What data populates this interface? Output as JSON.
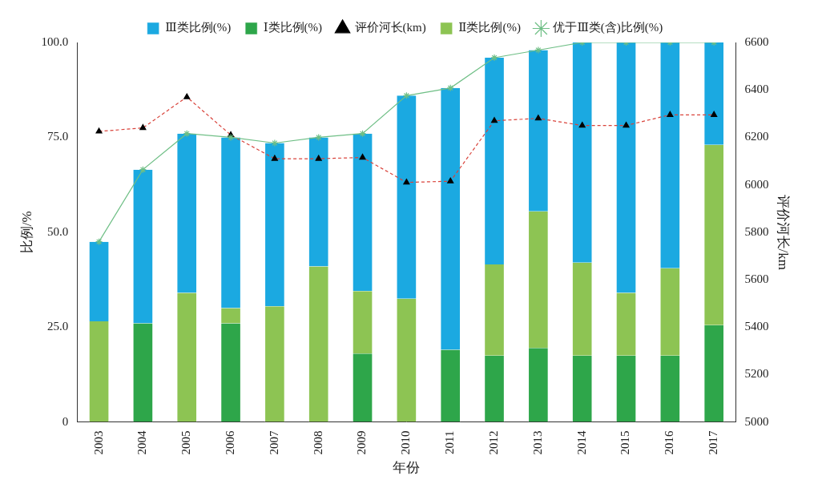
{
  "chart_data": {
    "type": "bar",
    "x_label": "年份",
    "y_label": "比例/%",
    "y2_label": "评价河长/km",
    "categories": [
      "2003",
      "2004",
      "2005",
      "2006",
      "2007",
      "2008",
      "2009",
      "2010",
      "2011",
      "2012",
      "2013",
      "2014",
      "2015",
      "2016",
      "2017"
    ],
    "stacked": true,
    "grid": false,
    "legend": "top",
    "ylim": [
      0,
      100
    ],
    "yticks": [
      0,
      {
        "value": 25,
        "label": "25.0"
      },
      {
        "value": 50,
        "label": "50.0"
      },
      {
        "value": 75,
        "label": "75.0"
      },
      {
        "value": 100,
        "label": "100.0"
      }
    ],
    "y2lim": [
      5000,
      6600
    ],
    "y2ticks": [
      5000,
      5200,
      5400,
      5600,
      5800,
      6000,
      6200,
      6400,
      6600
    ],
    "series": [
      {
        "name": "Ⅰ类比例(%)",
        "type": "bar",
        "color": "#2ea64a",
        "values": [
          0,
          26,
          0,
          26,
          0,
          0,
          18,
          0,
          19,
          17.5,
          19.5,
          17.5,
          17.5,
          17.5,
          25.5
        ]
      },
      {
        "name": "Ⅱ类比例(%)",
        "type": "bar",
        "color": "#8dc453",
        "values": [
          26.5,
          0,
          34,
          4,
          30.5,
          41,
          16.5,
          32.5,
          0,
          24,
          36,
          24.5,
          16.5,
          23,
          47.5
        ]
      },
      {
        "name": "Ⅲ类比例(%)",
        "type": "bar",
        "color": "#1ba9e1",
        "values": [
          21,
          40.5,
          42,
          45,
          43,
          34,
          41.5,
          53.5,
          69,
          54.5,
          42.5,
          58,
          66,
          59.5,
          27
        ]
      },
      {
        "name": "优于Ⅲ类(含)比例(%)",
        "type": "line",
        "color": "#6fbf86",
        "marker": "star",
        "line_style": "solid",
        "values": [
          47.5,
          66.5,
          76,
          75,
          73.5,
          75,
          76,
          86,
          88,
          96,
          98,
          100,
          100,
          100,
          100
        ]
      },
      {
        "name": "评价河长(km)",
        "type": "line",
        "color": "#d9433b",
        "marker": "triangle",
        "line_style": "dashed",
        "axis": "y2",
        "values": [
          6225,
          6240,
          6370,
          6210,
          6110,
          6110,
          6115,
          6010,
          6015,
          6270,
          6280,
          6250,
          6250,
          6295,
          6295
        ]
      }
    ]
  }
}
